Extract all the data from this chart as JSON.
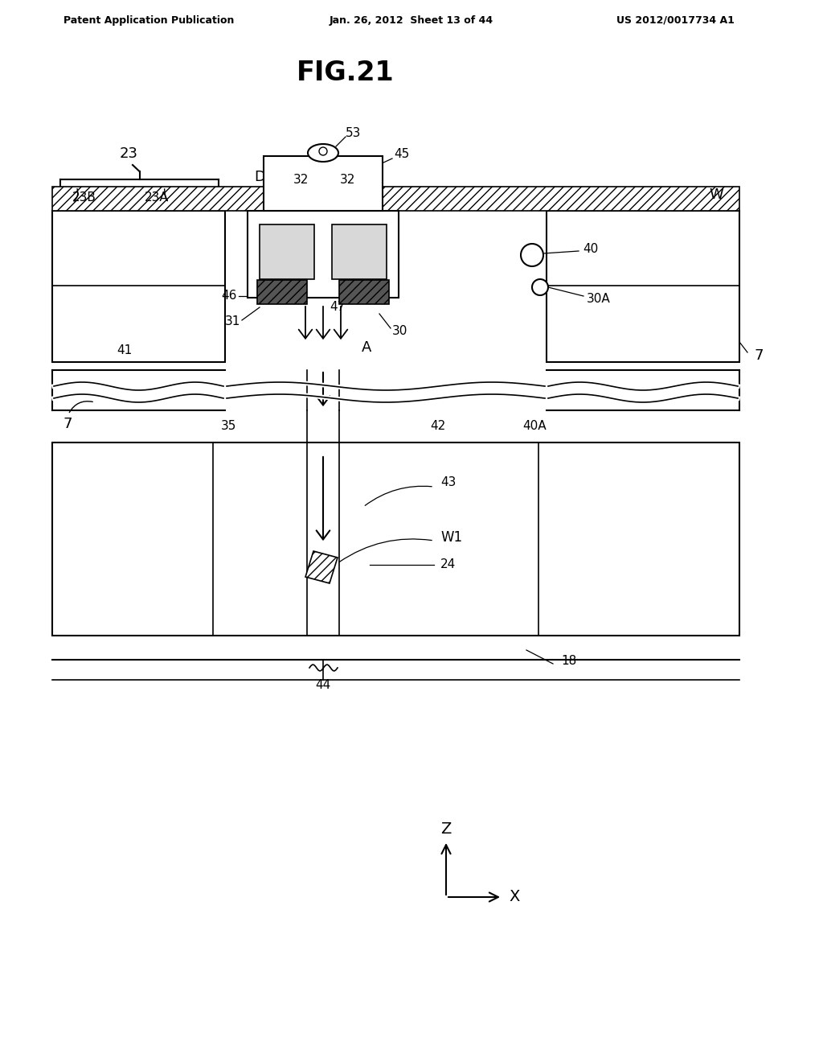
{
  "title": "FIG.21",
  "header_left": "Patent Application Publication",
  "header_center": "Jan. 26, 2012  Sheet 13 of 44",
  "header_right": "US 2012/0017734 A1",
  "bg_color": "#ffffff",
  "line_color": "#000000"
}
